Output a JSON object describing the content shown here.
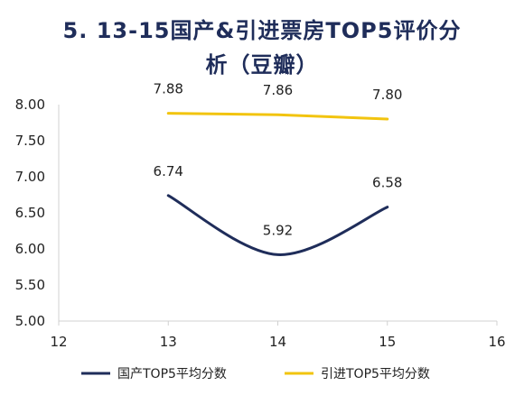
{
  "chart_data": {
    "type": "line",
    "title_line1": "5. 13-15国产&引进票房TOP5评价分",
    "title_line2": "析（豆瓣）",
    "x_ticks": [
      "12",
      "13",
      "14",
      "15",
      "16"
    ],
    "y_ticks": [
      "8.00",
      "7.50",
      "7.00",
      "6.50",
      "6.00",
      "5.50",
      "5.00"
    ],
    "xlim": [
      12,
      16
    ],
    "ylim": [
      5.0,
      8.0
    ],
    "grid": false,
    "legend_position": "bottom",
    "series": [
      {
        "name": "国产TOP5平均分数",
        "x": [
          13,
          14,
          15
        ],
        "values": [
          6.74,
          5.92,
          6.58
        ],
        "labels": [
          "6.74",
          "5.92",
          "6.58"
        ],
        "color": "#1f2d5a",
        "smooth": true
      },
      {
        "name": "引进TOP5平均分数",
        "x": [
          13,
          14,
          15
        ],
        "values": [
          7.88,
          7.86,
          7.8
        ],
        "labels": [
          "7.88",
          "7.86",
          "7.80"
        ],
        "color": "#f2c40f",
        "smooth": false
      }
    ]
  }
}
